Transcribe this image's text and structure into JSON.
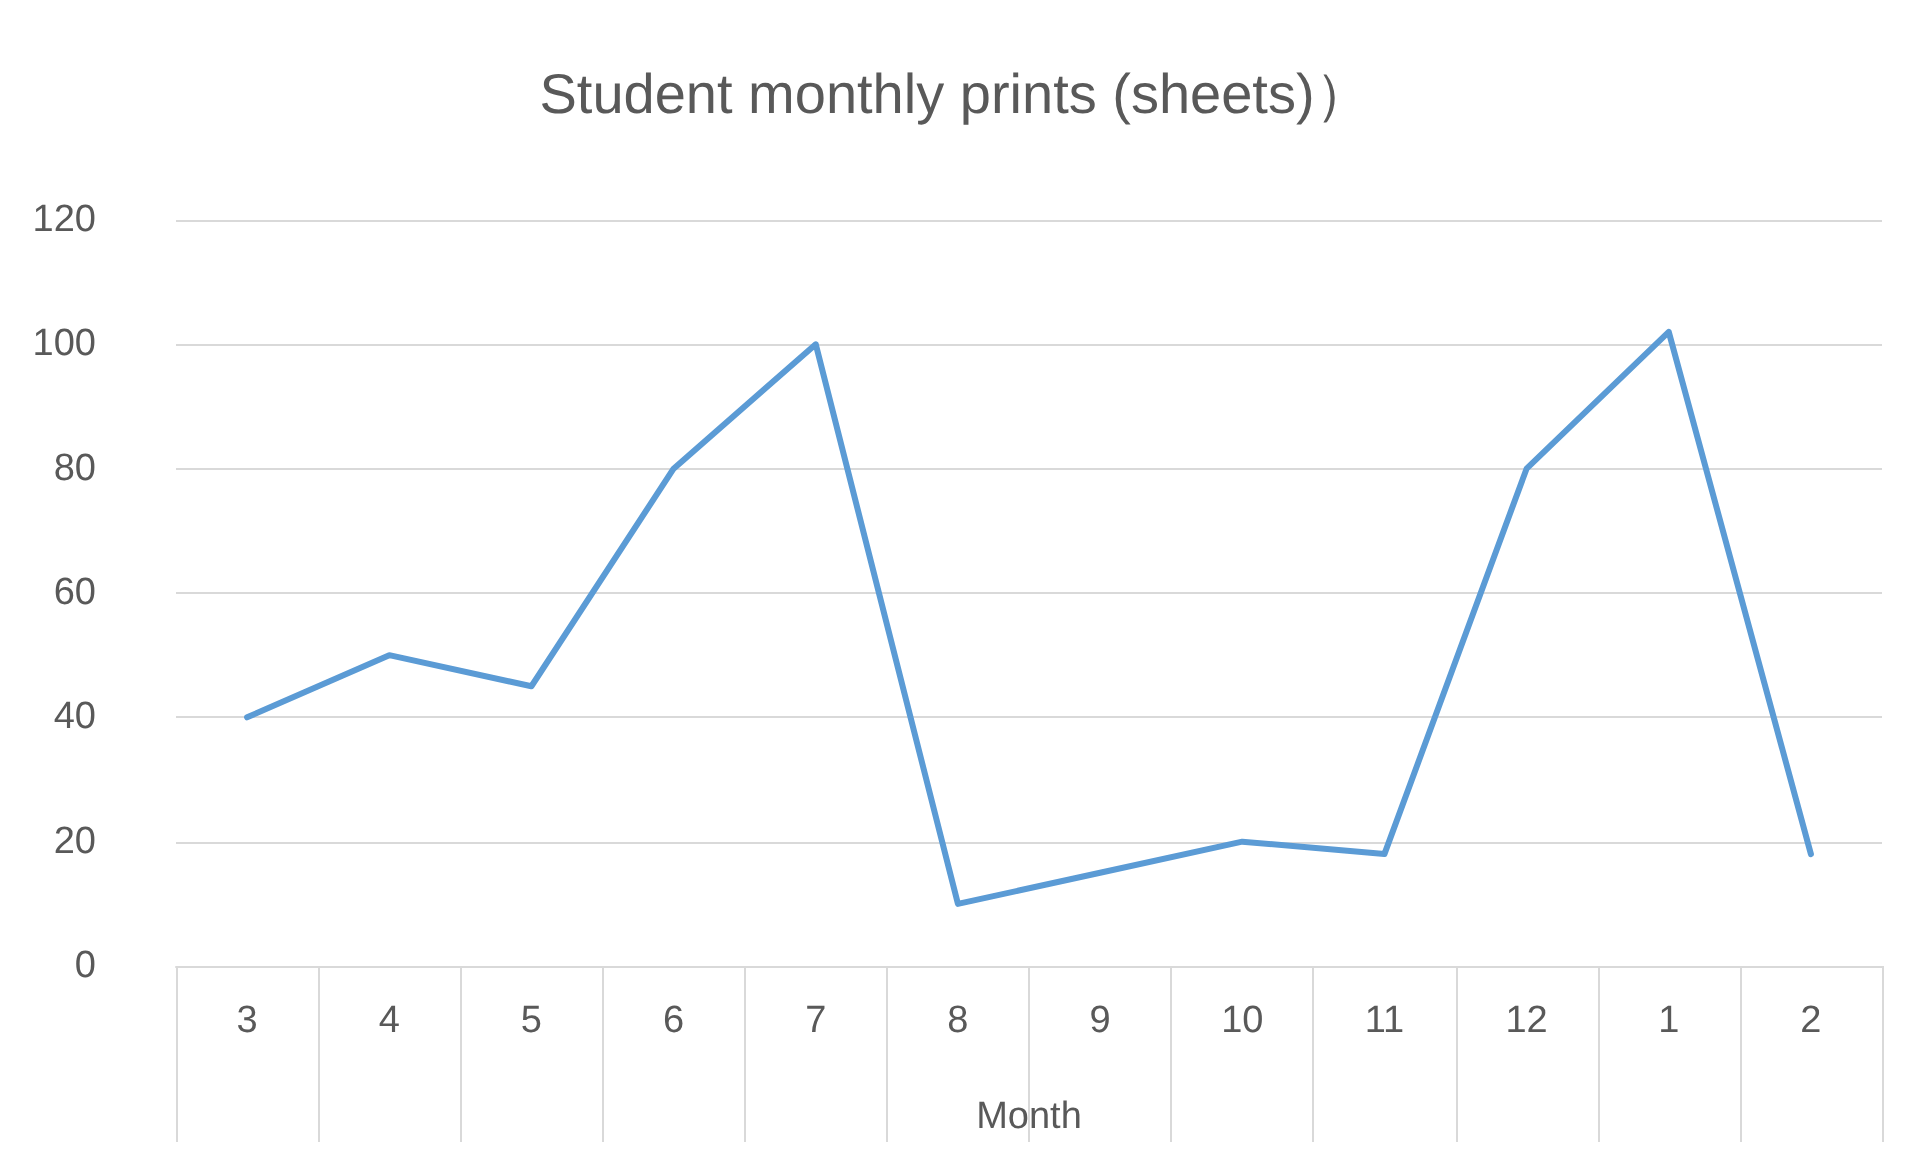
{
  "chart_data": {
    "type": "line",
    "title": "Student monthly prints (sheets)）",
    "xlabel": "Month",
    "categories": [
      "3",
      "4",
      "5",
      "6",
      "7",
      "8",
      "9",
      "10",
      "11",
      "12",
      "1",
      "2"
    ],
    "series": [
      {
        "color": "#5b9bd5",
        "values": [
          40,
          50,
          45,
          80,
          100,
          10,
          15,
          20,
          18,
          80,
          102,
          18
        ]
      }
    ],
    "ylim": [
      0,
      120
    ],
    "yticks": [
      0,
      20,
      40,
      60,
      80,
      100,
      120
    ],
    "grid": "y",
    "marker": "none",
    "line_style": "solid"
  }
}
